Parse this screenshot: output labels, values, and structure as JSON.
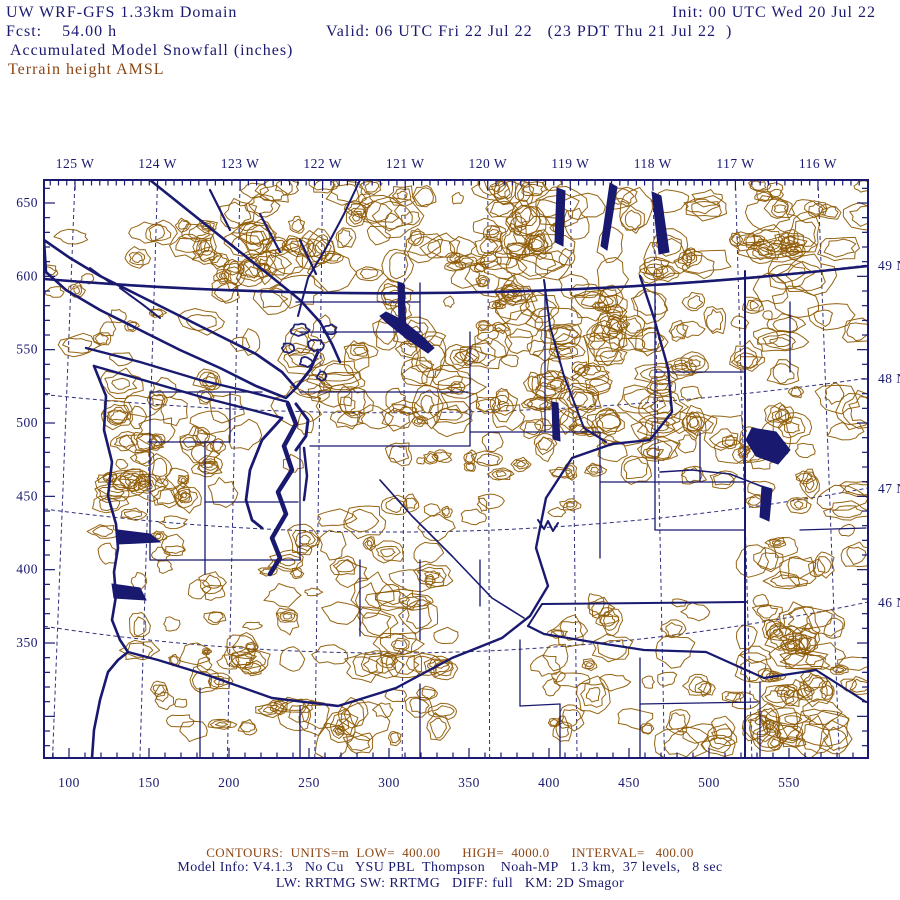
{
  "header": {
    "title": "UW WRF-GFS 1.33km Domain",
    "init": "Init: 00 UTC Wed 20 Jul 22",
    "fcst": "Fcst:    54.00 h",
    "valid": "Valid: 06 UTC Fri 22 Jul 22   (23 PDT Thu 21 Jul 22  )",
    "field": "Accumulated Model Snowfall (inches)",
    "overlay": "Terrain height AMSL"
  },
  "axes": {
    "lon_labels": [
      "125 W",
      "124 W",
      "123 W",
      "122 W",
      "121 W",
      "120 W",
      "119 W",
      "118 W",
      "117 W",
      "116 W"
    ],
    "lat_labels": [
      "49 N",
      "48 N",
      "47 N",
      "46 N"
    ],
    "x_labels": [
      "100",
      "150",
      "200",
      "250",
      "300",
      "350",
      "400",
      "450",
      "500",
      "550"
    ],
    "y_labels": [
      "650",
      "600",
      "550",
      "500",
      "450",
      "400",
      "350"
    ]
  },
  "footer": {
    "contours": "CONTOURS:  UNITS=m  LOW=  400.00      HIGH=  4000.0      INTERVAL=   400.00",
    "model_info": "Model Info: V4.1.3   No Cu   YSU PBL  Thompson    Noah-MP   1.3 km,  37 levels,   8 sec",
    "physics": "LW: RRTMG SW: RRTMG   DIFF: full   KM: 2D Smagor"
  },
  "colors": {
    "navy": "#191970",
    "terrain": "#8f5c06",
    "terrain_text": "#8b4513",
    "background": "#ffffff"
  },
  "chart_data": {
    "type": "map-contour",
    "title": "Accumulated Model Snowfall (inches)",
    "overlay_field": "Terrain height AMSL",
    "contours": {
      "units": "m",
      "low": 400.0,
      "high": 4000.0,
      "interval": 400.0
    },
    "grid_x_range_km": [
      100,
      550
    ],
    "grid_y_range_km": [
      350,
      650
    ],
    "longitudes_deg_w": [
      125,
      124,
      123,
      122,
      121,
      120,
      119,
      118,
      117,
      116
    ],
    "latitudes_deg_n": [
      49,
      48,
      47,
      46
    ],
    "model": {
      "version": "V4.1.3",
      "cumulus": "No Cu",
      "pbl": "YSU PBL",
      "microphysics": "Thompson",
      "lsm": "Noah-MP",
      "resolution": "1.3 km",
      "levels": 37,
      "timestep": "8 sec",
      "lw": "RRTMG",
      "sw": "RRTMG",
      "diff": "full",
      "km": "2D Smagor"
    }
  }
}
